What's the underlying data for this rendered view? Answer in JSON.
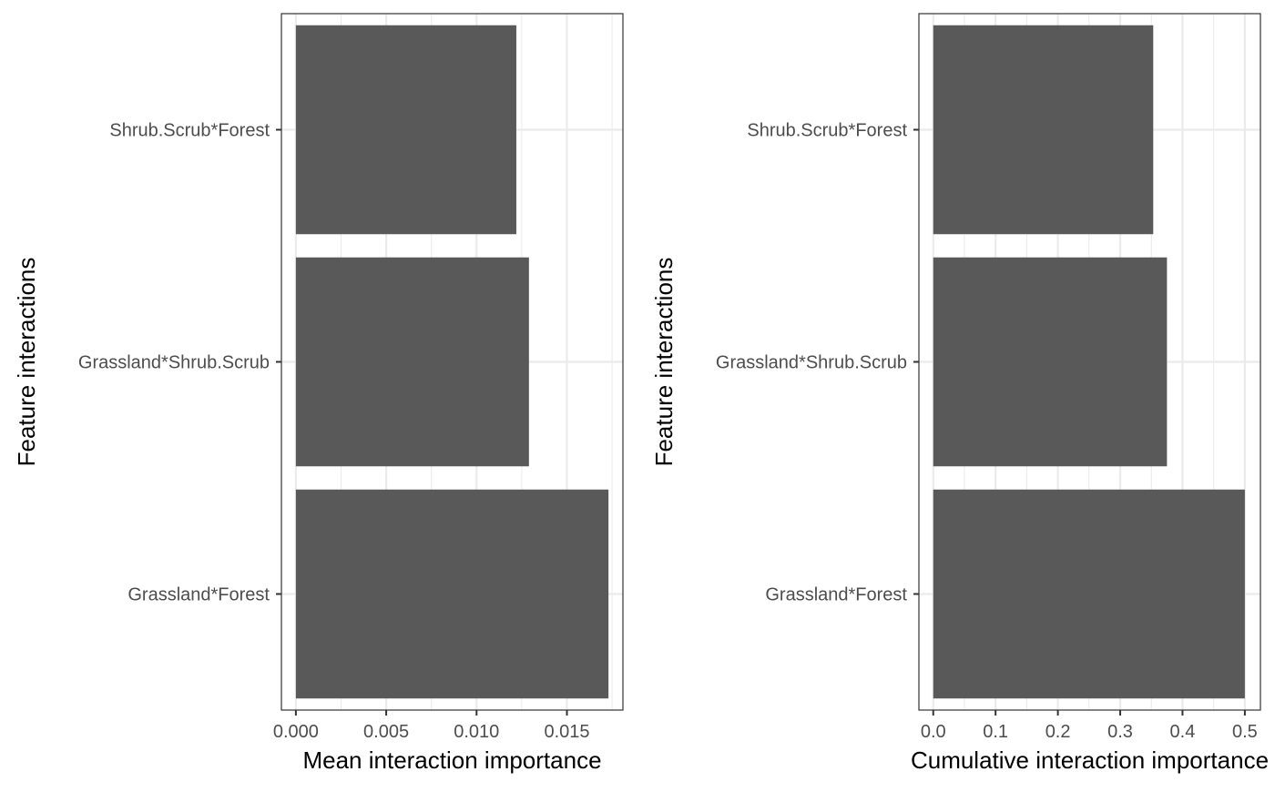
{
  "chart_data": [
    {
      "type": "bar",
      "orientation": "horizontal",
      "categories": [
        "Grassland*Forest",
        "Grassland*Shrub.Scrub",
        "Shrub.Scrub*Forest"
      ],
      "values": [
        0.0173,
        0.0129,
        0.0122
      ],
      "xlabel": "Mean interaction importance",
      "ylabel": "Feature interactions",
      "xlim": [
        -0.0008,
        0.0181
      ],
      "xticks": [
        0.0,
        0.005,
        0.01,
        0.015
      ],
      "xtick_labels": [
        "0.000",
        "0.005",
        "0.010",
        "0.015"
      ],
      "grid": true
    },
    {
      "type": "bar",
      "orientation": "horizontal",
      "categories": [
        "Grassland*Forest",
        "Grassland*Shrub.Scrub",
        "Shrub.Scrub*Forest"
      ],
      "values": [
        0.5,
        0.375,
        0.353
      ],
      "xlabel": "Cumulative interaction importance",
      "ylabel": "Feature interactions",
      "xlim": [
        -0.023,
        0.525
      ],
      "xticks": [
        0.0,
        0.1,
        0.2,
        0.3,
        0.4,
        0.5
      ],
      "xtick_labels": [
        "0.0",
        "0.1",
        "0.2",
        "0.3",
        "0.4",
        "0.5"
      ],
      "grid": true
    }
  ],
  "colors": {
    "bar": "#595959",
    "grid": "#ebebeb",
    "panel_border": "#333333",
    "tick_text": "#4d4d4d",
    "title_text": "#000000"
  }
}
